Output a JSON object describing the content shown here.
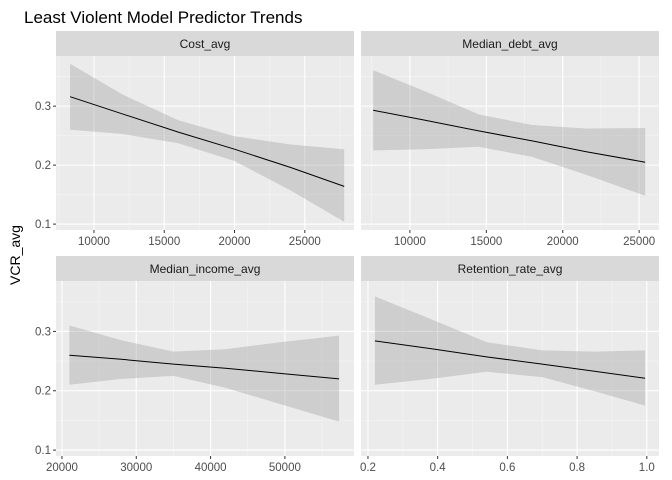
{
  "chart_data": {
    "type": "line",
    "title": "Least Violent Model Predictor Trends",
    "ylabel": "VCR_avg",
    "xlabel": "",
    "grid": true,
    "layout": "facet_wrap_2x2",
    "y_axis": {
      "range": [
        0.09,
        0.385
      ],
      "ticks": [
        0.1,
        0.2,
        0.3
      ],
      "tick_labels": [
        "0.1",
        "0.2",
        "0.3"
      ]
    },
    "panels": [
      {
        "name": "Cost_avg",
        "x_range": [
          7300,
          28500
        ],
        "x_ticks": [
          10000,
          15000,
          20000,
          25000
        ],
        "x_tick_labels": [
          "10000",
          "15000",
          "20000",
          "25000"
        ],
        "x": [
          8300,
          12000,
          16000,
          20000,
          24000,
          27800
        ],
        "fit": [
          0.316,
          0.287,
          0.256,
          0.227,
          0.196,
          0.164
        ],
        "lower": [
          0.26,
          0.253,
          0.237,
          0.207,
          0.157,
          0.104
        ],
        "upper": [
          0.372,
          0.32,
          0.276,
          0.249,
          0.235,
          0.227
        ]
      },
      {
        "name": "Median_debt_avg",
        "x_range": [
          6800,
          26300
        ],
        "x_ticks": [
          10000,
          15000,
          20000,
          25000
        ],
        "x_tick_labels": [
          "10000",
          "15000",
          "20000",
          "25000"
        ],
        "x": [
          7600,
          11000,
          14500,
          18000,
          21500,
          25400
        ],
        "fit": [
          0.293,
          0.276,
          0.258,
          0.241,
          0.223,
          0.205
        ],
        "lower": [
          0.225,
          0.227,
          0.231,
          0.214,
          0.184,
          0.148
        ],
        "upper": [
          0.361,
          0.325,
          0.286,
          0.268,
          0.262,
          0.263
        ]
      },
      {
        "name": "Median_income_avg",
        "x_range": [
          19200,
          59300
        ],
        "x_ticks": [
          20000,
          30000,
          40000,
          50000
        ],
        "x_tick_labels": [
          "20000",
          "30000",
          "40000",
          "50000"
        ],
        "x": [
          21000,
          28000,
          35000,
          42000,
          49500,
          57300
        ],
        "fit": [
          0.26,
          0.253,
          0.245,
          0.238,
          0.229,
          0.22
        ],
        "lower": [
          0.21,
          0.22,
          0.225,
          0.205,
          0.177,
          0.148
        ],
        "upper": [
          0.31,
          0.285,
          0.266,
          0.27,
          0.282,
          0.293
        ]
      },
      {
        "name": "Retention_rate_avg",
        "x_range": [
          0.18,
          1.035
        ],
        "x_ticks": [
          0.2,
          0.4,
          0.6,
          0.8,
          1.0
        ],
        "x_tick_labels": [
          "0.2",
          "0.4",
          "0.6",
          "0.8",
          "1.0"
        ],
        "x": [
          0.22,
          0.38,
          0.54,
          0.7,
          0.85,
          0.995
        ],
        "fit": [
          0.284,
          0.271,
          0.257,
          0.245,
          0.233,
          0.221
        ],
        "lower": [
          0.21,
          0.22,
          0.232,
          0.223,
          0.199,
          0.175
        ],
        "upper": [
          0.359,
          0.321,
          0.282,
          0.268,
          0.266,
          0.268
        ]
      }
    ]
  }
}
